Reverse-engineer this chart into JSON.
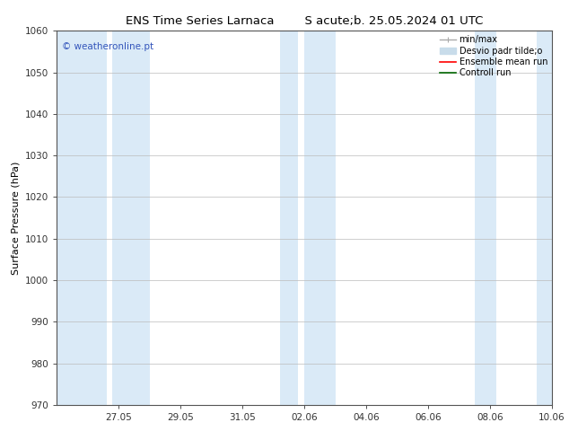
{
  "title_left": "ENS Time Series Larnaca",
  "title_right": "S acute;b. 25.05.2024 01 UTC",
  "ylabel": "Surface Pressure (hPa)",
  "ylim": [
    970,
    1060
  ],
  "yticks": [
    970,
    980,
    990,
    1000,
    1010,
    1020,
    1030,
    1040,
    1050,
    1060
  ],
  "xlim": [
    0,
    16
  ],
  "xtick_labels": [
    "27.05",
    "29.05",
    "31.05",
    "02.06",
    "04.06",
    "06.06",
    "08.06",
    "10.06"
  ],
  "xtick_positions": [
    2,
    4,
    6,
    8,
    10,
    12,
    14,
    16
  ],
  "background_color": "#ffffff",
  "plot_bg_color": "#ffffff",
  "shaded_bands": [
    {
      "x_start": 0.0,
      "x_end": 1.6,
      "color": "#daeaf7"
    },
    {
      "x_start": 1.8,
      "x_end": 3.0,
      "color": "#daeaf7"
    },
    {
      "x_start": 7.2,
      "x_end": 7.8,
      "color": "#daeaf7"
    },
    {
      "x_start": 8.0,
      "x_end": 9.0,
      "color": "#daeaf7"
    },
    {
      "x_start": 13.5,
      "x_end": 14.2,
      "color": "#daeaf7"
    },
    {
      "x_start": 15.5,
      "x_end": 16.0,
      "color": "#daeaf7"
    }
  ],
  "legend_entries": [
    {
      "label": "min/max",
      "color": "#aaaaaa",
      "lw": 1.0
    },
    {
      "label": "Desvio padr tilde;o",
      "color": "#c8dcea",
      "lw": 6
    },
    {
      "label": "Ensemble mean run",
      "color": "#ff0000",
      "lw": 1.2
    },
    {
      "label": "Controll run",
      "color": "#006600",
      "lw": 1.2
    }
  ],
  "watermark": "© weatheronline.pt",
  "watermark_color": "#3355bb",
  "watermark_fontsize": 7.5,
  "title_fontsize": 9.5,
  "axis_label_fontsize": 8,
  "tick_fontsize": 7.5,
  "legend_fontsize": 7,
  "grid_color": "#bbbbbb",
  "grid_lw": 0.5,
  "spine_color": "#555555",
  "tick_color": "#333333"
}
